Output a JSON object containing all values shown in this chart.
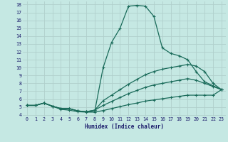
{
  "xlabel": "Humidex (Indice chaleur)",
  "xlim": [
    -0.5,
    23.5
  ],
  "ylim": [
    3.8,
    18.4
  ],
  "xticks": [
    0,
    1,
    2,
    3,
    4,
    5,
    6,
    7,
    8,
    9,
    10,
    11,
    12,
    13,
    14,
    15,
    16,
    17,
    18,
    19,
    20,
    21,
    22,
    23
  ],
  "yticks": [
    4,
    5,
    6,
    7,
    8,
    9,
    10,
    11,
    12,
    13,
    14,
    15,
    16,
    17,
    18
  ],
  "bg_color": "#c5e8e3",
  "line_color": "#1a6b5a",
  "grid_color": "#b0d0cc",
  "line1_x": [
    0,
    1,
    2,
    3,
    4,
    5,
    6,
    7,
    8,
    9,
    10,
    11,
    12,
    13,
    14,
    15,
    16,
    17,
    18,
    19,
    20,
    21,
    22,
    23
  ],
  "line1_y": [
    5.2,
    5.2,
    5.5,
    5.1,
    4.8,
    4.8,
    4.5,
    4.4,
    4.4,
    10.0,
    13.2,
    15.0,
    17.8,
    17.9,
    17.8,
    16.5,
    12.5,
    11.8,
    11.5,
    11.0,
    9.5,
    8.2,
    7.7,
    7.2
  ],
  "line2_x": [
    0,
    1,
    2,
    3,
    4,
    5,
    6,
    7,
    8,
    9,
    10,
    11,
    12,
    13,
    14,
    15,
    16,
    17,
    18,
    19,
    20,
    21,
    22,
    23
  ],
  "line2_y": [
    5.2,
    5.2,
    5.5,
    5.1,
    4.8,
    4.8,
    4.5,
    4.4,
    4.6,
    5.8,
    6.5,
    7.2,
    7.9,
    8.5,
    9.1,
    9.5,
    9.8,
    10.0,
    10.2,
    10.4,
    10.2,
    9.5,
    8.0,
    7.2
  ],
  "line3_x": [
    0,
    1,
    2,
    3,
    4,
    5,
    6,
    7,
    8,
    9,
    10,
    11,
    12,
    13,
    14,
    15,
    16,
    17,
    18,
    19,
    20,
    21,
    22,
    23
  ],
  "line3_y": [
    5.2,
    5.2,
    5.5,
    5.1,
    4.8,
    4.8,
    4.5,
    4.4,
    4.6,
    5.2,
    5.7,
    6.2,
    6.7,
    7.1,
    7.5,
    7.8,
    8.0,
    8.2,
    8.4,
    8.6,
    8.4,
    8.0,
    7.6,
    7.2
  ],
  "line4_x": [
    0,
    1,
    2,
    3,
    4,
    5,
    6,
    7,
    8,
    9,
    10,
    11,
    12,
    13,
    14,
    15,
    16,
    17,
    18,
    19,
    20,
    21,
    22,
    23
  ],
  "line4_y": [
    5.2,
    5.2,
    5.5,
    5.1,
    4.7,
    4.6,
    4.4,
    4.35,
    4.35,
    4.55,
    4.8,
    5.05,
    5.3,
    5.5,
    5.75,
    5.9,
    6.05,
    6.2,
    6.35,
    6.5,
    6.5,
    6.5,
    6.5,
    7.2
  ]
}
